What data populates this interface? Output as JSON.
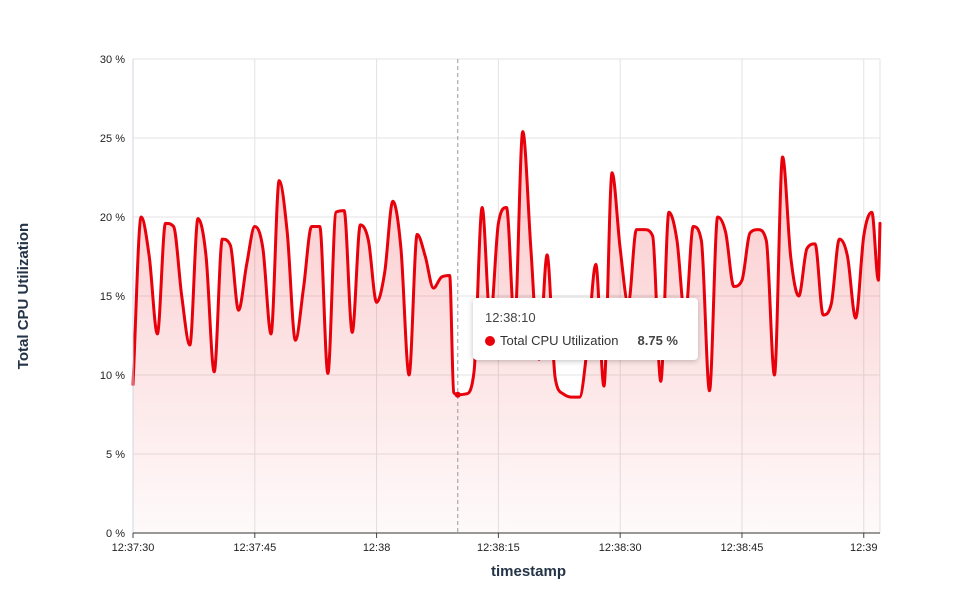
{
  "chart_data": {
    "type": "area",
    "xlabel": "timestamp",
    "ylabel": "Total CPU Utilization",
    "y_unit": "%",
    "ylim": [
      0,
      30
    ],
    "yticks": [
      "0 %",
      "5 %",
      "10 %",
      "15 %",
      "20 %",
      "25 %",
      "30 %"
    ],
    "xlim": [
      "12:37:30",
      "12:39:02"
    ],
    "xticks": [
      "12:37:30",
      "12:37:45",
      "12:38",
      "12:38:15",
      "12:38:30",
      "12:38:45",
      "12:39"
    ],
    "grid": true,
    "series": [
      {
        "name": "Total CPU Utilization",
        "color": "#e8000b",
        "points": [
          [
            "12:37:30.0",
            9.4
          ],
          [
            "12:37:31.0",
            20.0
          ],
          [
            "12:37:32.0",
            17.5
          ],
          [
            "12:37:33.0",
            12.6
          ],
          [
            "12:37:34.0",
            19.6
          ],
          [
            "12:37:35.0",
            19.4
          ],
          [
            "12:37:36.0",
            15.0
          ],
          [
            "12:37:37.0",
            11.9
          ],
          [
            "12:37:38.0",
            19.9
          ],
          [
            "12:37:39.0",
            17.5
          ],
          [
            "12:37:40.0",
            10.2
          ],
          [
            "12:37:41.0",
            18.6
          ],
          [
            "12:37:42.0",
            18.2
          ],
          [
            "12:37:43.0",
            14.1
          ],
          [
            "12:37:44.0",
            17.0
          ],
          [
            "12:37:45.0",
            19.4
          ],
          [
            "12:37:46.0",
            18.0
          ],
          [
            "12:37:47.0",
            12.6
          ],
          [
            "12:37:48.0",
            22.3
          ],
          [
            "12:37:49.0",
            19.0
          ],
          [
            "12:37:50.0",
            12.2
          ],
          [
            "12:37:51.0",
            15.5
          ],
          [
            "12:37:52.0",
            19.4
          ],
          [
            "12:37:53.0",
            19.4
          ],
          [
            "12:37:54.0",
            10.1
          ],
          [
            "12:37:55.0",
            20.3
          ],
          [
            "12:37:56.0",
            20.4
          ],
          [
            "12:37:57.0",
            12.7
          ],
          [
            "12:37:58.0",
            19.5
          ],
          [
            "12:37:59.0",
            18.5
          ],
          [
            "12:38:00.0",
            14.6
          ],
          [
            "12:38:01.0",
            16.5
          ],
          [
            "12:38:02.0",
            21.0
          ],
          [
            "12:38:03.0",
            18.0
          ],
          [
            "12:38:04.0",
            10.0
          ],
          [
            "12:38:05.0",
            18.9
          ],
          [
            "12:38:06.0",
            17.5
          ],
          [
            "12:38:07.0",
            15.5
          ],
          [
            "12:38:08.0",
            16.2
          ],
          [
            "12:38:09.0",
            16.3
          ],
          [
            "12:38:09.5",
            8.9
          ],
          [
            "12:38:10.0",
            8.75
          ],
          [
            "12:38:11.0",
            8.8
          ],
          [
            "12:38:12.0",
            10.2
          ],
          [
            "12:38:13.0",
            20.6
          ],
          [
            "12:38:14.0",
            13.5
          ],
          [
            "12:38:15.0",
            19.6
          ],
          [
            "12:38:16.0",
            20.6
          ],
          [
            "12:38:17.0",
            13.2
          ],
          [
            "12:38:18.0",
            25.4
          ],
          [
            "12:38:19.0",
            18.0
          ],
          [
            "12:38:20.0",
            11.0
          ],
          [
            "12:38:21.0",
            17.6
          ],
          [
            "12:38:22.0",
            9.8
          ],
          [
            "12:38:23.0",
            8.8
          ],
          [
            "12:38:24.0",
            8.6
          ],
          [
            "12:38:25.0",
            8.6
          ],
          [
            "12:38:26.0",
            12.0
          ],
          [
            "12:38:27.0",
            17.0
          ],
          [
            "12:38:28.0",
            9.3
          ],
          [
            "12:38:29.0",
            22.8
          ],
          [
            "12:38:30.0",
            18.0
          ],
          [
            "12:38:31.0",
            14.5
          ],
          [
            "12:38:32.0",
            19.2
          ],
          [
            "12:38:33.0",
            19.2
          ],
          [
            "12:38:34.0",
            18.8
          ],
          [
            "12:38:35.0",
            9.6
          ],
          [
            "12:38:36.0",
            20.3
          ],
          [
            "12:38:37.0",
            18.5
          ],
          [
            "12:38:38.0",
            13.6
          ],
          [
            "12:38:39.0",
            19.4
          ],
          [
            "12:38:40.0",
            18.5
          ],
          [
            "12:38:41.0",
            9.0
          ],
          [
            "12:38:42.0",
            20.0
          ],
          [
            "12:38:43.0",
            19.0
          ],
          [
            "12:38:44.0",
            15.6
          ],
          [
            "12:38:45.0",
            16.0
          ],
          [
            "12:38:46.0",
            19.0
          ],
          [
            "12:38:47.0",
            19.2
          ],
          [
            "12:38:48.0",
            18.5
          ],
          [
            "12:38:49.0",
            10.0
          ],
          [
            "12:38:50.0",
            23.8
          ],
          [
            "12:38:51.0",
            17.5
          ],
          [
            "12:38:52.0",
            15.0
          ],
          [
            "12:38:53.0",
            18.0
          ],
          [
            "12:38:54.0",
            18.3
          ],
          [
            "12:38:55.0",
            13.8
          ],
          [
            "12:38:56.0",
            14.5
          ],
          [
            "12:38:57.0",
            18.6
          ],
          [
            "12:38:58.0",
            17.5
          ],
          [
            "12:38:59.0",
            13.6
          ],
          [
            "12:39:00.0",
            18.8
          ],
          [
            "12:39:01.0",
            20.3
          ],
          [
            "12:39:01.8",
            16.0
          ],
          [
            "12:39:02.0",
            19.6
          ]
        ]
      }
    ],
    "hover": {
      "time": "12:38:10",
      "series_name": "Total CPU Utilization",
      "value": "8.75 %",
      "marker_color": "#e8000b"
    }
  }
}
